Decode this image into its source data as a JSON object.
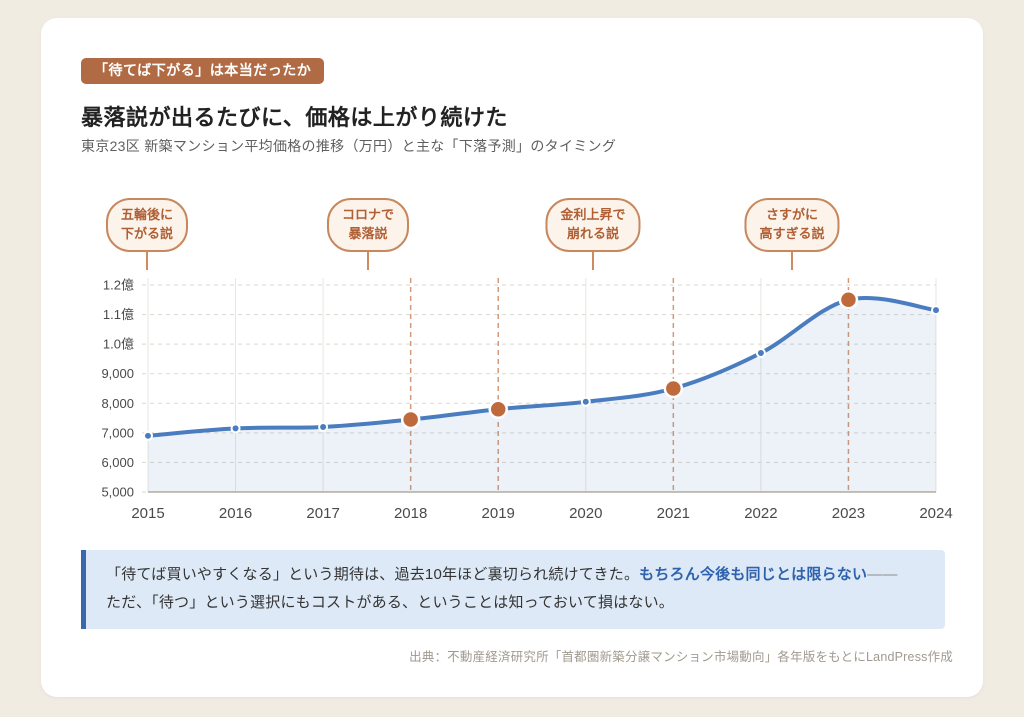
{
  "colors": {
    "page_bg": "#f1ece2",
    "card_bg": "#ffffff",
    "badge_bg": "#b06b45",
    "bubble_border": "#c8885e",
    "bubble_text": "#b05f35",
    "line": "#4a7cc0",
    "area": "rgba(74,124,192,0.10)",
    "highlight_dot": "#bf6a3c",
    "dashed_marker": "#d29a79",
    "grid_h": "#dcd7cd",
    "grid_v": "#e9e6e0",
    "axis": "#b3ada3",
    "tick_text": "#4a4a4a",
    "callout_accent": "#3a68af"
  },
  "header": {
    "badge": "「待てば下がる」は本当だったか",
    "title": "暴落説が出るたびに、価格は上がり続けた",
    "subtitle": "東京23区 新築マンション平均価格の推移（万円）と主な「下落予測」のタイミング"
  },
  "annotations": [
    {
      "line1": "五輪後に",
      "line2": "下がる説"
    },
    {
      "line1": "コロナで",
      "line2": "暴落説"
    },
    {
      "line1": "金利上昇で",
      "line2": "崩れる説"
    },
    {
      "line1": "さすがに",
      "line2": "高すぎる説"
    }
  ],
  "chart_data": {
    "type": "line",
    "title": "東京23区 新築マンション平均価格の推移（万円）",
    "x": [
      2015,
      2016,
      2017,
      2018,
      2019,
      2020,
      2021,
      2022,
      2023,
      2024
    ],
    "values": [
      6900,
      7150,
      7200,
      7450,
      7800,
      8050,
      8500,
      9700,
      11500,
      11150
    ],
    "unit": "万円",
    "highlighted_years": [
      2018,
      2019,
      2021,
      2023
    ],
    "ylim": [
      5000,
      12000
    ],
    "yticks": [
      {
        "value": 12000,
        "label": "1.2億"
      },
      {
        "value": 11000,
        "label": "1.1億"
      },
      {
        "value": 10000,
        "label": "1.0億"
      },
      {
        "value": 9000,
        "label": "9,000"
      },
      {
        "value": 8000,
        "label": "8,000"
      },
      {
        "value": 7000,
        "label": "7,000"
      },
      {
        "value": 6000,
        "label": "6,000"
      },
      {
        "value": 5000,
        "label": "5,000"
      }
    ],
    "grid": true,
    "legend": "none",
    "area_fill": true
  },
  "callout": {
    "text_before": "「待てば買いやすくなる」という期待は、過去10年ほど裏切られ続けてきた。",
    "highlight": "もちろん今後も同じとは限らない",
    "dash": "――",
    "line2": "ただ、「待つ」という選択にもコストがある、ということは知っておいて損はない。"
  },
  "source": "出典：不動産経済研究所「首都圏新築分譲マンション市場動向」各年版をもとにLandPress作成"
}
